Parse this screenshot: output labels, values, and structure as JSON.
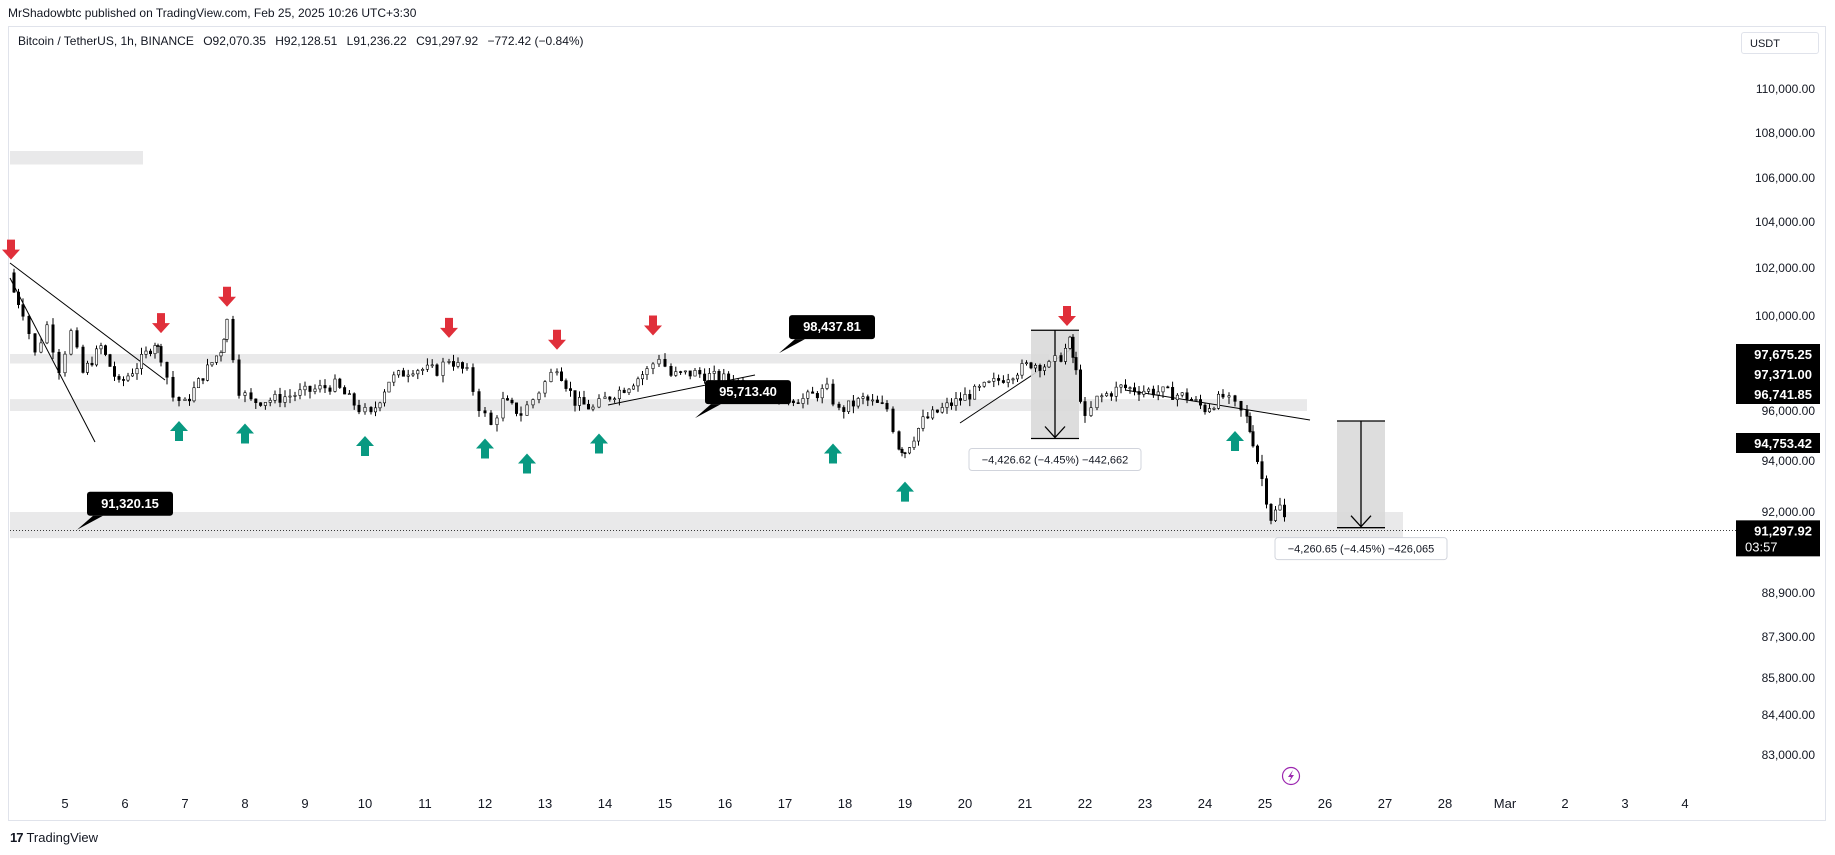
{
  "header": {
    "published": "MrShadowbtc published on TradingView.com, Feb 25, 2025 10:26 UTC+3:30",
    "symbol": "Bitcoin / TetherUS, 1h, BINANCE",
    "open": "O92,070.35",
    "high": "H92,128.51",
    "low": "L91,236.22",
    "close": "C91,297.92",
    "change": "−772.42 (−0.84%)"
  },
  "currency": "USDT",
  "brand": {
    "logo": "17",
    "name": "TradingView"
  },
  "colors": {
    "up_arrow": "#089981",
    "down_arrow": "#e02f3a",
    "zone": "#e9e9ea",
    "badge": "#000000"
  },
  "chart_data": {
    "type": "candlestick",
    "price_axis_ticks": [
      "110,000.00",
      "108,000.00",
      "106,000.00",
      "104,000.00",
      "102,000.00",
      "100,000.00",
      "96,000.00",
      "94,000.00",
      "92,000.00",
      "88,900.00",
      "87,300.00",
      "85,800.00",
      "84,400.00",
      "83,000.00"
    ],
    "price_axis_tick_values": [
      110000,
      108000,
      106000,
      104000,
      102000,
      100000,
      96000,
      94000,
      92000,
      88900,
      87300,
      85800,
      84400,
      83000
    ],
    "time_axis_ticks": [
      "5",
      "6",
      "7",
      "8",
      "9",
      "10",
      "11",
      "12",
      "13",
      "14",
      "15",
      "16",
      "17",
      "18",
      "19",
      "20",
      "21",
      "22",
      "23",
      "24",
      "25",
      "26",
      "27",
      "28",
      "Mar",
      "2",
      "3",
      "4"
    ],
    "price_labels": [
      {
        "text": "97,675.25",
        "value": 97675.25
      },
      {
        "text": "97,371.00",
        "value": 97371.0
      },
      {
        "text": "96,741.85",
        "value": 96741.85
      },
      {
        "text": "94,753.42",
        "value": 94753.42
      },
      {
        "text": "91,297.92",
        "value": 91297.92,
        "countdown": "03:57"
      }
    ],
    "close_series": [
      {
        "day": 4.0,
        "price": 101800
      },
      {
        "day": 4.3,
        "price": 100200
      },
      {
        "day": 4.5,
        "price": 98400
      },
      {
        "day": 4.7,
        "price": 99600
      },
      {
        "day": 4.9,
        "price": 97800
      },
      {
        "day": 5.1,
        "price": 99300
      },
      {
        "day": 5.3,
        "price": 97600
      },
      {
        "day": 5.6,
        "price": 98700
      },
      {
        "day": 5.9,
        "price": 97100
      },
      {
        "day": 6.2,
        "price": 97900
      },
      {
        "day": 6.5,
        "price": 98900
      },
      {
        "day": 6.6,
        "price": 98300
      },
      {
        "day": 6.8,
        "price": 96600
      },
      {
        "day": 7.0,
        "price": 96300
      },
      {
        "day": 7.3,
        "price": 97500
      },
      {
        "day": 7.6,
        "price": 98600
      },
      {
        "day": 7.7,
        "price": 99800
      },
      {
        "day": 7.9,
        "price": 96900
      },
      {
        "day": 8.1,
        "price": 96400
      },
      {
        "day": 8.5,
        "price": 96500
      },
      {
        "day": 9.0,
        "price": 96800
      },
      {
        "day": 9.5,
        "price": 97100
      },
      {
        "day": 9.9,
        "price": 96100
      },
      {
        "day": 10.1,
        "price": 95800
      },
      {
        "day": 10.4,
        "price": 97300
      },
      {
        "day": 10.8,
        "price": 97800
      },
      {
        "day": 11.2,
        "price": 97700
      },
      {
        "day": 11.4,
        "price": 98200
      },
      {
        "day": 11.7,
        "price": 97600
      },
      {
        "day": 11.9,
        "price": 96200
      },
      {
        "day": 12.1,
        "price": 95400
      },
      {
        "day": 12.3,
        "price": 96400
      },
      {
        "day": 12.6,
        "price": 95900
      },
      {
        "day": 12.8,
        "price": 96500
      },
      {
        "day": 13.0,
        "price": 97200
      },
      {
        "day": 13.2,
        "price": 97900
      },
      {
        "day": 13.5,
        "price": 96400
      },
      {
        "day": 13.8,
        "price": 96100
      },
      {
        "day": 14.0,
        "price": 96500
      },
      {
        "day": 14.4,
        "price": 97100
      },
      {
        "day": 14.7,
        "price": 97700
      },
      {
        "day": 14.9,
        "price": 98300
      },
      {
        "day": 15.1,
        "price": 97500
      },
      {
        "day": 15.5,
        "price": 97600
      },
      {
        "day": 15.9,
        "price": 97400
      },
      {
        "day": 16.3,
        "price": 97200
      },
      {
        "day": 16.6,
        "price": 96900
      },
      {
        "day": 16.9,
        "price": 96600
      },
      {
        "day": 17.3,
        "price": 96500
      },
      {
        "day": 17.7,
        "price": 96900
      },
      {
        "day": 17.9,
        "price": 96000
      },
      {
        "day": 18.3,
        "price": 96500
      },
      {
        "day": 18.7,
        "price": 96100
      },
      {
        "day": 18.9,
        "price": 94600
      },
      {
        "day": 19.0,
        "price": 94400
      },
      {
        "day": 19.3,
        "price": 95600
      },
      {
        "day": 19.7,
        "price": 96200
      },
      {
        "day": 20.0,
        "price": 96600
      },
      {
        "day": 20.4,
        "price": 97100
      },
      {
        "day": 20.8,
        "price": 97600
      },
      {
        "day": 21.1,
        "price": 98000
      },
      {
        "day": 21.4,
        "price": 97900
      },
      {
        "day": 21.6,
        "price": 98300
      },
      {
        "day": 21.75,
        "price": 98900
      },
      {
        "day": 21.85,
        "price": 97600
      },
      {
        "day": 22.0,
        "price": 95600
      },
      {
        "day": 22.2,
        "price": 96500
      },
      {
        "day": 22.6,
        "price": 97000
      },
      {
        "day": 22.9,
        "price": 96900
      },
      {
        "day": 23.3,
        "price": 96800
      },
      {
        "day": 23.7,
        "price": 96600
      },
      {
        "day": 24.0,
        "price": 96100
      },
      {
        "day": 24.3,
        "price": 96600
      },
      {
        "day": 24.5,
        "price": 96200
      },
      {
        "day": 24.7,
        "price": 95700
      },
      {
        "day": 24.8,
        "price": 94800
      },
      {
        "day": 24.95,
        "price": 93300
      },
      {
        "day": 25.1,
        "price": 91800
      },
      {
        "day": 25.25,
        "price": 92200
      },
      {
        "day": 25.4,
        "price": 91298
      }
    ],
    "zones": [
      {
        "low": 98000,
        "high": 98400,
        "from_day": 4.0,
        "to_day": 21.4
      },
      {
        "low": 96000,
        "high": 96500,
        "from_day": 4.0,
        "to_day": 25.7
      },
      {
        "low": 91000,
        "high": 92000,
        "from_day": 4.0,
        "to_day": 27.3
      },
      {
        "low": 106600,
        "high": 107200,
        "from_day": 4.0,
        "to_day": 6.3
      }
    ],
    "price_notes": [
      {
        "text": "98,437.81",
        "day": 16.9,
        "price": 98437.81
      },
      {
        "text": "95,713.40",
        "day": 15.5,
        "price": 95713.4
      },
      {
        "text": "91,320.15",
        "day": 5.2,
        "price": 91320.15
      }
    ],
    "measurements": [
      {
        "text": "−4,426.62 (−4.45%) −442,662",
        "day_from": 21.1,
        "day_to": 21.9,
        "top": 99400,
        "bottom": 94900
      },
      {
        "text": "−4,260.65 (−4.45%) −426,065",
        "day_from": 26.2,
        "day_to": 27.0,
        "top": 95600,
        "bottom": 91400
      }
    ],
    "down_arrows": [
      {
        "day": 4.1,
        "price": 102800
      },
      {
        "day": 6.6,
        "price": 99700
      },
      {
        "day": 7.7,
        "price": 100800
      },
      {
        "day": 11.4,
        "price": 99500
      },
      {
        "day": 13.2,
        "price": 99000
      },
      {
        "day": 14.8,
        "price": 99600
      },
      {
        "day": 21.7,
        "price": 100000
      }
    ],
    "up_arrows": [
      {
        "day": 6.9,
        "price": 95200
      },
      {
        "day": 8.0,
        "price": 95100
      },
      {
        "day": 10.0,
        "price": 94600
      },
      {
        "day": 12.0,
        "price": 94500
      },
      {
        "day": 12.7,
        "price": 93900
      },
      {
        "day": 13.9,
        "price": 94700
      },
      {
        "day": 17.8,
        "price": 94300
      },
      {
        "day": 19.0,
        "price": 92800
      },
      {
        "day": 24.5,
        "price": 94800
      }
    ]
  }
}
